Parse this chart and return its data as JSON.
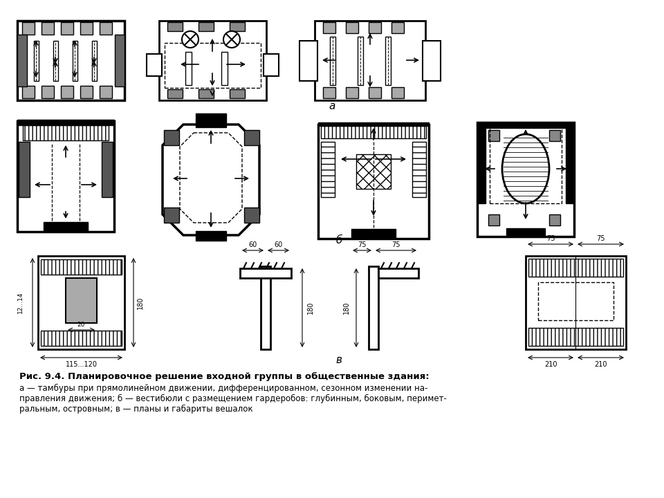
{
  "caption_line1": "Рис. 9.4. Планировочное решение входной группы в общественные здания:",
  "caption_line2": "а — тамбуры при прямолинейном движении, дифференцированном, сезонном изменении на-",
  "caption_line3": "правления движения; б — вестибюли с размещением гардеробов: глубинным, боковым, перимет-",
  "caption_line4": "ральным, островным; в — планы и габариты вешалок",
  "label_a": "а",
  "label_b": "б",
  "label_v": "в",
  "bg_color": "#ffffff"
}
